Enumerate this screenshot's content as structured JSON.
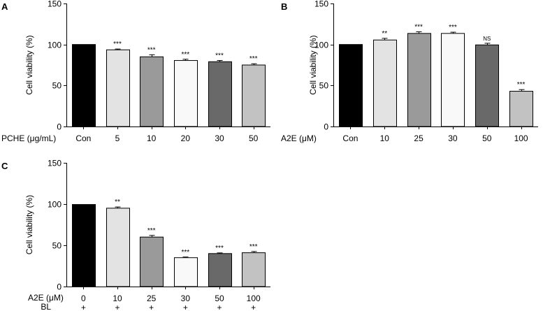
{
  "chart_data": [
    {
      "panel": "A",
      "type": "bar",
      "ylabel": "Cell viability (%)",
      "ylim": [
        0,
        150
      ],
      "yticks": [
        0,
        50,
        100,
        150
      ],
      "xlabel": "PCHE (μg/mL)",
      "categories": [
        "Con",
        "5",
        "10",
        "20",
        "30",
        "50"
      ],
      "values": [
        100,
        93.5,
        85,
        80.5,
        79,
        75
      ],
      "errors": [
        0,
        1,
        2.5,
        1.5,
        1.5,
        1.5
      ],
      "significance": [
        "",
        "***",
        "***",
        "***",
        "***",
        "***"
      ],
      "colors": [
        "#000000",
        "#e3e3e3",
        "#9a9a9a",
        "#f9f9f9",
        "#696969",
        "#c2c2c2"
      ]
    },
    {
      "panel": "B",
      "type": "bar",
      "ylabel": "Cell viability (%)",
      "ylim": [
        0,
        150
      ],
      "yticks": [
        0,
        50,
        100,
        150
      ],
      "xlabel": "A2E (μM)",
      "categories": [
        "Con",
        "10",
        "25",
        "30",
        "50",
        "100"
      ],
      "values": [
        100,
        105.5,
        113.5,
        113.5,
        99.5,
        43
      ],
      "errors": [
        0,
        2,
        2,
        1.5,
        2,
        2
      ],
      "significance": [
        "",
        "**",
        "***",
        "***",
        "NS",
        "***"
      ],
      "colors": [
        "#000000",
        "#e3e3e3",
        "#9a9a9a",
        "#f9f9f9",
        "#696969",
        "#c2c2c2"
      ]
    },
    {
      "panel": "C",
      "type": "bar",
      "ylabel": "Cell viability (%)",
      "ylim": [
        0,
        150
      ],
      "yticks": [
        0,
        50,
        100,
        150
      ],
      "xlabel": "A2E (μM)",
      "xlabel2": "BL",
      "categories": [
        "0",
        "10",
        "25",
        "30",
        "50",
        "100"
      ],
      "categories2": [
        "+",
        "+",
        "+",
        "+",
        "+",
        "+"
      ],
      "values": [
        99.5,
        95,
        60,
        35,
        40,
        41
      ],
      "errors": [
        0,
        1.5,
        2,
        0.8,
        0.8,
        1.5
      ],
      "significance": [
        "",
        "**",
        "***",
        "***",
        "***",
        "***"
      ],
      "colors": [
        "#000000",
        "#e3e3e3",
        "#9a9a9a",
        "#f9f9f9",
        "#696969",
        "#c2c2c2"
      ]
    }
  ]
}
